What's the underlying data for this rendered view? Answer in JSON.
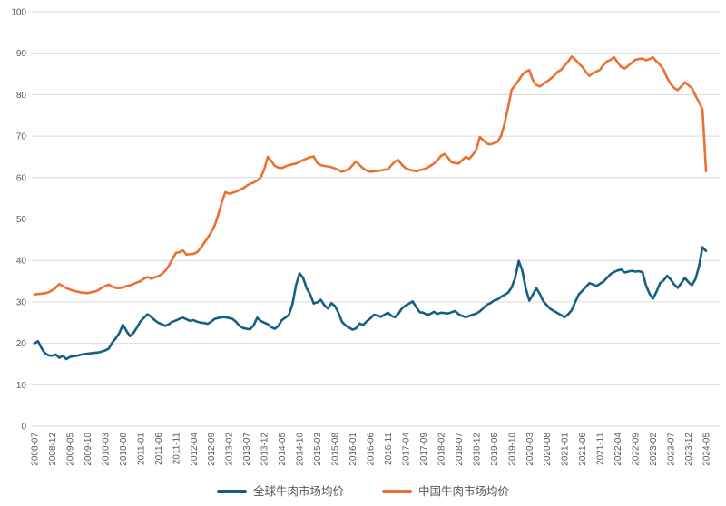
{
  "chart_data": {
    "type": "line",
    "title": "",
    "x_start": "2008-07",
    "x_end": "2024-05",
    "x_tick_every_months": 5,
    "x_tick_labels": [
      "2008-07",
      "2008-12",
      "2009-05",
      "2009-10",
      "2010-03",
      "2010-08",
      "2011-01",
      "2011-06",
      "2011-11",
      "2012-04",
      "2012-09",
      "2013-02",
      "2013-07",
      "2013-12",
      "2014-05",
      "2014-10",
      "2015-03",
      "2015-08",
      "2016-01",
      "2016-06",
      "2016-11",
      "2017-04",
      "2017-09",
      "2018-02",
      "2018-07",
      "2018-12",
      "2019-05",
      "2019-10",
      "2020-03",
      "2020-08",
      "2021-01",
      "2021-06",
      "2021-11",
      "2022-04",
      "2022-09",
      "2023-02",
      "2023-07",
      "2023-12",
      "2024-05"
    ],
    "ylim": [
      0,
      100
    ],
    "y_ticks": [
      0,
      10,
      20,
      30,
      40,
      50,
      60,
      70,
      80,
      90,
      100
    ],
    "grid": "horizontal",
    "legend_position": "bottom",
    "series": [
      {
        "name": "全球牛肉市场均价",
        "color": "#156082",
        "values": [
          20.0,
          20.5,
          18.8,
          17.6,
          17.1,
          17.0,
          17.3,
          16.5,
          17.0,
          16.2,
          16.7,
          16.9,
          17.0,
          17.2,
          17.4,
          17.5,
          17.6,
          17.7,
          17.8,
          18.0,
          18.3,
          18.7,
          20.2,
          21.2,
          22.5,
          24.5,
          23.0,
          21.7,
          22.5,
          23.8,
          25.3,
          26.2,
          27.0,
          26.4,
          25.6,
          25.0,
          24.6,
          24.2,
          24.6,
          25.2,
          25.5,
          25.9,
          26.2,
          25.8,
          25.4,
          25.6,
          25.2,
          25.0,
          24.9,
          24.7,
          25.2,
          25.9,
          26.1,
          26.3,
          26.3,
          26.1,
          25.9,
          25.2,
          24.2,
          23.7,
          23.5,
          23.4,
          24.3,
          26.2,
          25.4,
          25.0,
          24.6,
          23.9,
          23.5,
          24.2,
          25.6,
          26.2,
          26.9,
          29.5,
          34.0,
          36.9,
          35.8,
          33.3,
          31.8,
          29.6,
          29.9,
          30.5,
          29.2,
          28.4,
          29.7,
          29.0,
          27.4,
          25.2,
          24.3,
          23.8,
          23.3,
          23.6,
          24.8,
          24.4,
          25.3,
          26.0,
          26.9,
          26.7,
          26.4,
          26.9,
          27.4,
          26.6,
          26.3,
          27.2,
          28.5,
          29.1,
          29.6,
          30.1,
          28.8,
          27.5,
          27.4,
          26.9,
          27.1,
          27.6,
          27.1,
          27.4,
          27.3,
          27.2,
          27.5,
          27.8,
          27.0,
          26.6,
          26.3,
          26.6,
          26.9,
          27.2,
          27.7,
          28.5,
          29.3,
          29.7,
          30.3,
          30.6,
          31.2,
          31.7,
          32.2,
          33.5,
          35.8,
          39.9,
          37.6,
          33.2,
          30.3,
          31.8,
          33.3,
          31.9,
          30.1,
          29.2,
          28.3,
          27.8,
          27.3,
          26.8,
          26.3,
          27.0,
          28.0,
          30.0,
          31.8,
          32.7,
          33.6,
          34.5,
          34.2,
          33.8,
          34.4,
          34.9,
          35.8,
          36.7,
          37.2,
          37.6,
          37.8,
          37.1,
          37.3,
          37.5,
          37.3,
          37.4,
          37.2,
          34.0,
          32.0,
          30.8,
          32.5,
          34.5,
          35.2,
          36.3,
          35.4,
          34.2,
          33.4,
          34.5,
          35.8,
          34.8,
          34.0,
          35.5,
          38.5,
          43.2,
          42.3
        ]
      },
      {
        "name": "中国牛肉市场均价",
        "color": "#E97132",
        "values": [
          31.8,
          31.9,
          32.0,
          32.1,
          32.3,
          32.8,
          33.4,
          34.3,
          33.8,
          33.3,
          33.0,
          32.7,
          32.5,
          32.3,
          32.2,
          32.1,
          32.3,
          32.5,
          32.8,
          33.4,
          33.8,
          34.2,
          33.7,
          33.4,
          33.3,
          33.5,
          33.8,
          34.0,
          34.3,
          34.7,
          35.0,
          35.6,
          36.0,
          35.6,
          35.9,
          36.2,
          36.7,
          37.5,
          38.7,
          40.3,
          41.8,
          42.0,
          42.4,
          41.4,
          41.5,
          41.6,
          42.0,
          43.0,
          44.2,
          45.4,
          46.8,
          48.5,
          51.0,
          54.0,
          56.5,
          56.1,
          56.3,
          56.6,
          57.0,
          57.4,
          58.0,
          58.5,
          58.8,
          59.3,
          60.0,
          62.0,
          65.0,
          64.0,
          62.8,
          62.4,
          62.3,
          62.7,
          63.0,
          63.2,
          63.4,
          63.8,
          64.2,
          64.6,
          64.9,
          65.1,
          63.5,
          63.0,
          62.8,
          62.7,
          62.5,
          62.2,
          61.8,
          61.4,
          61.7,
          62.0,
          63.0,
          63.9,
          63.0,
          62.2,
          61.7,
          61.4,
          61.5,
          61.6,
          61.7,
          61.9,
          62.0,
          63.0,
          63.9,
          64.2,
          63.0,
          62.3,
          61.9,
          61.7,
          61.5,
          61.8,
          62.0,
          62.3,
          62.8,
          63.4,
          64.2,
          65.2,
          65.7,
          64.8,
          63.7,
          63.5,
          63.4,
          64.2,
          65.0,
          64.5,
          65.5,
          66.7,
          69.8,
          69.0,
          68.2,
          68.0,
          68.3,
          68.6,
          70.0,
          73.0,
          77.0,
          81.2,
          82.3,
          83.5,
          84.8,
          85.6,
          85.9,
          83.5,
          82.3,
          82.0,
          82.6,
          83.2,
          83.8,
          84.6,
          85.5,
          86.0,
          87.0,
          88.0,
          89.2,
          88.5,
          87.5,
          86.7,
          85.5,
          84.5,
          85.2,
          85.6,
          86.0,
          87.2,
          88.0,
          88.4,
          89.0,
          87.8,
          86.7,
          86.3,
          87.0,
          87.7,
          88.4,
          88.6,
          88.7,
          88.3,
          88.6,
          89.0,
          88.0,
          87.2,
          86.0,
          84.0,
          82.6,
          81.6,
          81.1,
          82.0,
          83.0,
          82.3,
          81.6,
          79.8,
          78.2,
          76.5,
          61.5
        ]
      }
    ]
  },
  "layout_text": {
    "legend": {
      "global_label": "全球牛肉市场均价",
      "china_label": "中国牛肉市场均价"
    }
  },
  "colors": {
    "background": "#FFFFFF",
    "grid": "#D9D9D9",
    "axis_line": "#D9D9D9",
    "tick_text": "#595959",
    "legend_text": "#595959",
    "series_global": "#156082",
    "series_china": "#E97132"
  }
}
